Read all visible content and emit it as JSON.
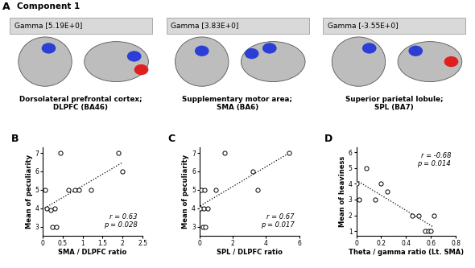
{
  "panel_a": {
    "label": "A",
    "title": "Component 1",
    "images": [
      {
        "header": "Gamma [5.19E+0]",
        "caption": "Dorsolateral prefrontal cortex;\nDLPFC (BA46)"
      },
      {
        "header": "Gamma [3.83E+0]",
        "caption": "Supplementary motor area;\nSMA (BA6)"
      },
      {
        "header": "Gamma [-3.55E+0]",
        "caption": "Superior parietal lobule;\nSPL (BA7)"
      }
    ]
  },
  "chart_data": [
    {
      "type": "scatter",
      "title": "B",
      "x_label": "SMA / DLPFC ratio",
      "y_label": "Mean of peculiarity",
      "x": [
        0.05,
        0.1,
        0.2,
        0.25,
        0.3,
        0.35,
        0.45,
        0.65,
        0.8,
        0.9,
        1.2,
        1.9,
        2.0
      ],
      "values": [
        5,
        4,
        3.9,
        3,
        4,
        3,
        7,
        5,
        5,
        5,
        5,
        7,
        6
      ],
      "xlim": [
        0,
        2.5
      ],
      "xticks": [
        0,
        0.5,
        1,
        1.5,
        2,
        2.5
      ],
      "ylim": [
        2.5,
        7.3
      ],
      "yticks": [
        3,
        4,
        5,
        6,
        7
      ],
      "annotations": [
        "r = 0.63",
        "p = 0.028"
      ],
      "marker": "o",
      "color": "#000000"
    },
    {
      "type": "scatter",
      "title": "C",
      "x_label": "SPL / DLPFC ratio",
      "y_label": "Mean of peculiarity",
      "x": [
        0.05,
        0.1,
        0.2,
        0.25,
        0.3,
        0.35,
        0.5,
        1.0,
        1.5,
        3.2,
        3.5,
        5.4
      ],
      "values": [
        4,
        5,
        3,
        4,
        5,
        3,
        4,
        5,
        7,
        6,
        5,
        7
      ],
      "xlim": [
        0,
        6
      ],
      "xticks": [
        0,
        2,
        4,
        6
      ],
      "ylim": [
        2.5,
        7.3
      ],
      "yticks": [
        3,
        4,
        5,
        6,
        7
      ],
      "annotations": [
        "r = 0.67",
        "p = 0.017"
      ],
      "marker": "o",
      "color": "#000000"
    },
    {
      "type": "scatter",
      "title": "D",
      "x_label": "Theta / gamma ratio (Lt. SMA)",
      "y_label": "Mean of heaviness",
      "x": [
        0.0,
        0.02,
        0.08,
        0.15,
        0.2,
        0.25,
        0.45,
        0.5,
        0.55,
        0.58,
        0.6,
        0.62
      ],
      "values": [
        4,
        3,
        5,
        3,
        4,
        3.5,
        2,
        2,
        1,
        1,
        1,
        2
      ],
      "xlim": [
        0,
        0.8
      ],
      "xticks": [
        0,
        0.2,
        0.4,
        0.6,
        0.8
      ],
      "ylim": [
        0.7,
        6.3
      ],
      "yticks": [
        1,
        2,
        3,
        4,
        5,
        6
      ],
      "annotations": [
        "r = -0.68",
        "p = 0.014"
      ],
      "marker": "o",
      "color": "#000000"
    }
  ]
}
